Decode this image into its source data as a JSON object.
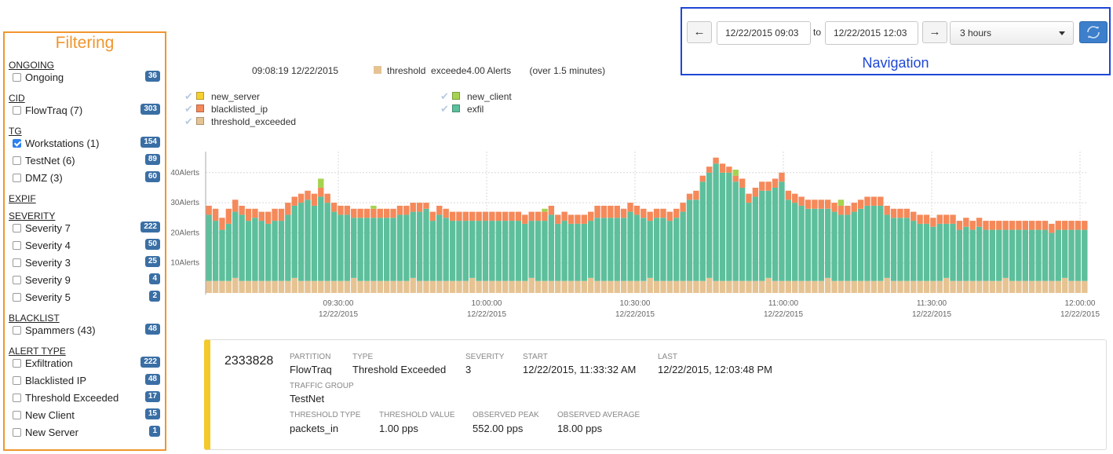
{
  "filters": {
    "title": "Filtering",
    "groups": [
      {
        "label": "ONGOING",
        "items": [
          {
            "label": "Ongoing",
            "count": "36",
            "checked": false
          }
        ]
      },
      {
        "label": "CID",
        "items": [
          {
            "label": "FlowTraq (7)",
            "count": "303",
            "checked": false
          }
        ]
      },
      {
        "label": "TG",
        "items": [
          {
            "label": "Workstations (1)",
            "count": "154",
            "checked": true
          },
          {
            "label": "TestNet (6)",
            "count": "89",
            "checked": false
          },
          {
            "label": "DMZ (3)",
            "count": "60",
            "checked": false
          }
        ]
      },
      {
        "label": "EXPIF",
        "items": []
      },
      {
        "label": "SEVERITY",
        "items": [
          {
            "label": "Severity 7",
            "count": "222",
            "checked": false
          },
          {
            "label": "Severity 4",
            "count": "50",
            "checked": false
          },
          {
            "label": "Severity 3",
            "count": "25",
            "checked": false
          },
          {
            "label": "Severity 9",
            "count": "4",
            "checked": false
          },
          {
            "label": "Severity 5",
            "count": "2",
            "checked": false
          }
        ]
      },
      {
        "label": "BLACKLIST",
        "items": [
          {
            "label": "Spammers (43)",
            "count": "48",
            "checked": false
          }
        ]
      },
      {
        "label": "ALERT TYPE",
        "items": [
          {
            "label": "Exfiltration",
            "count": "222",
            "checked": false
          },
          {
            "label": "Blacklisted IP",
            "count": "48",
            "checked": false
          },
          {
            "label": "Threshold Exceeded",
            "count": "17",
            "checked": false
          },
          {
            "label": "New Client",
            "count": "15",
            "checked": false
          },
          {
            "label": "New Server",
            "count": "1",
            "checked": false
          }
        ]
      }
    ]
  },
  "nav": {
    "title": "Navigation",
    "prev": "←",
    "next": "→",
    "from": "12/22/2015 09:03",
    "to_label": "to",
    "to": "12/22/2015 12:03",
    "range": "3 hours"
  },
  "hover": {
    "time": "09:08:19 12/22/2015",
    "text": "threshold  exceede4.00 Alerts       (over 1.5 minutes)"
  },
  "legend": [
    {
      "name": "new_server",
      "color": "#f5d130"
    },
    {
      "name": "blacklisted_ip",
      "color": "#f5895a"
    },
    {
      "name": "threshold_exceeded",
      "color": "#e6c393"
    },
    {
      "name": "new_client",
      "color": "#a5d34f"
    },
    {
      "name": "exfil",
      "color": "#5dbf9c"
    }
  ],
  "chart_data": {
    "type": "bar",
    "stacked": true,
    "ylabels": [
      "40Alerts",
      "30Alerts",
      "20Alerts",
      "10Alerts"
    ],
    "yticks": [
      40,
      30,
      20,
      10
    ],
    "ylim": [
      0,
      47
    ],
    "xlabels": [
      {
        "time": "09:30:00",
        "date": "12/22/2015"
      },
      {
        "time": "10:00:00",
        "date": "12/22/2015"
      },
      {
        "time": "10:30:00",
        "date": "12/22/2015"
      },
      {
        "time": "11:00:00",
        "date": "12/22/2015"
      },
      {
        "time": "11:30:00",
        "date": "12/22/2015"
      },
      {
        "time": "12:00:00",
        "date": "12/22/2015"
      }
    ],
    "series_order": [
      "threshold_exceeded",
      "exfil",
      "blacklisted_ip",
      "new_client",
      "new_server"
    ],
    "totals": [
      29,
      28,
      25,
      28,
      31,
      29,
      28,
      28,
      27,
      27,
      28,
      28,
      30,
      32,
      33,
      34,
      33,
      35,
      33,
      30,
      29,
      29,
      28,
      28,
      28,
      28,
      28,
      28,
      28,
      29,
      29,
      30,
      30,
      30,
      27,
      29,
      28,
      27,
      27,
      27,
      27,
      27,
      27,
      27,
      27,
      27,
      27,
      27,
      26,
      27,
      27,
      27,
      29,
      26,
      27,
      26,
      26,
      26,
      27,
      29,
      29,
      29,
      29,
      28,
      30,
      29,
      28,
      27,
      28,
      28,
      27,
      28,
      30,
      33,
      34,
      39,
      42,
      45,
      43,
      42,
      39,
      38,
      33,
      35,
      37,
      37,
      38,
      40,
      34,
      33,
      32,
      31,
      31,
      31,
      31,
      30,
      29,
      29,
      30,
      31,
      32,
      32,
      32,
      29,
      28,
      28,
      28,
      27,
      26,
      26,
      25,
      26,
      26,
      26,
      24,
      25,
      24,
      25,
      24,
      24,
      24,
      24,
      24,
      24,
      24,
      24,
      24,
      24,
      23,
      24,
      24,
      24,
      24,
      24
    ],
    "blacklisted": [
      3,
      4,
      4,
      5,
      4,
      3,
      4,
      3,
      3,
      4,
      4,
      4,
      4,
      3,
      3,
      3,
      4,
      3,
      3,
      3,
      3,
      3,
      3,
      3,
      3,
      3,
      3,
      3,
      3,
      3,
      3,
      3,
      3,
      2,
      3,
      3,
      3,
      3,
      3,
      3,
      3,
      3,
      3,
      3,
      3,
      3,
      3,
      3,
      3,
      3,
      3,
      3,
      3,
      3,
      3,
      3,
      3,
      3,
      3,
      4,
      4,
      4,
      4,
      3,
      3,
      3,
      3,
      3,
      3,
      3,
      3,
      3,
      3,
      2,
      3,
      2,
      2,
      2,
      3,
      2,
      2,
      3,
      3,
      3,
      3,
      3,
      3,
      3,
      3,
      3,
      3,
      3,
      3,
      3,
      3,
      3,
      3,
      3,
      3,
      3,
      3,
      3,
      3,
      3,
      3,
      3,
      3,
      3,
      3,
      3,
      3,
      3,
      3,
      3,
      3,
      3,
      3,
      3,
      3,
      3,
      3,
      3,
      3,
      3,
      3,
      3,
      3,
      3,
      3,
      3,
      3,
      3,
      3,
      3
    ],
    "new_client_bars": [
      {
        "index": 17,
        "value": 3
      },
      {
        "index": 25,
        "value": 1
      },
      {
        "index": 51,
        "value": 1
      },
      {
        "index": 80,
        "value": 2
      },
      {
        "index": 96,
        "value": 2
      }
    ]
  },
  "alert": {
    "id": "2333828",
    "fields": [
      {
        "label": "PARTITION",
        "value": "FlowTraq"
      },
      {
        "label": "TYPE",
        "value": "Threshold Exceeded"
      },
      {
        "label": "SEVERITY",
        "value": "3"
      },
      {
        "label": "START",
        "value": "12/22/2015, 11:33:32 AM"
      },
      {
        "label": "LAST",
        "value": "12/22/2015, 12:03:48 PM"
      },
      {
        "label": "TRAFFIC GROUP",
        "value": "TestNet"
      },
      {
        "label": "THRESHOLD TYPE",
        "value": "packets_in"
      },
      {
        "label": "THRESHOLD VALUE",
        "value": "1.00 pps"
      },
      {
        "label": "OBSERVED PEAK",
        "value": "552.00 pps"
      },
      {
        "label": "OBSERVED AVERAGE",
        "value": "18.00 pps"
      }
    ]
  }
}
